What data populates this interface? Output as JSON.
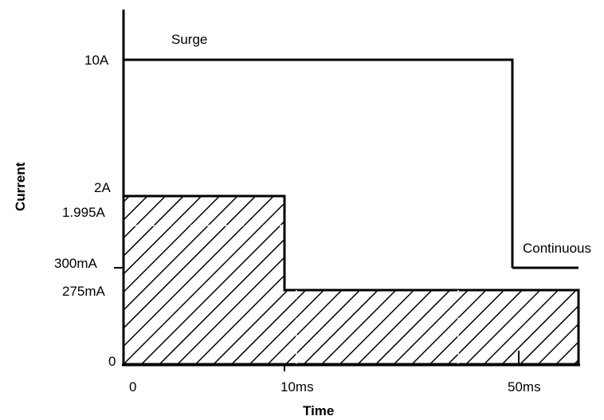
{
  "chart_data": {
    "type": "line",
    "title": "",
    "xlabel": "Time",
    "ylabel": "Current",
    "x_ticks": [
      "0",
      "10ms",
      "50ms"
    ],
    "y_ticks": [
      "0",
      "275mA",
      "300mA",
      "1.995A",
      "2A",
      "10A"
    ],
    "series": [
      {
        "name": "Surge",
        "points": [
          {
            "x": "0",
            "y": "10A"
          },
          {
            "x": "50ms",
            "y": "10A"
          },
          {
            "x": "50ms",
            "y": "300mA"
          }
        ]
      },
      {
        "name": "Continuous",
        "points": [
          {
            "x": "50ms",
            "y": "300mA"
          },
          {
            "x": "end",
            "y": "300mA"
          }
        ]
      }
    ],
    "hatched_region": {
      "segments": [
        {
          "from": "0",
          "to": "10ms",
          "y": "1.995A"
        },
        {
          "from": "10ms",
          "to": "end",
          "y": "275mA"
        }
      ]
    },
    "grid": false
  }
}
